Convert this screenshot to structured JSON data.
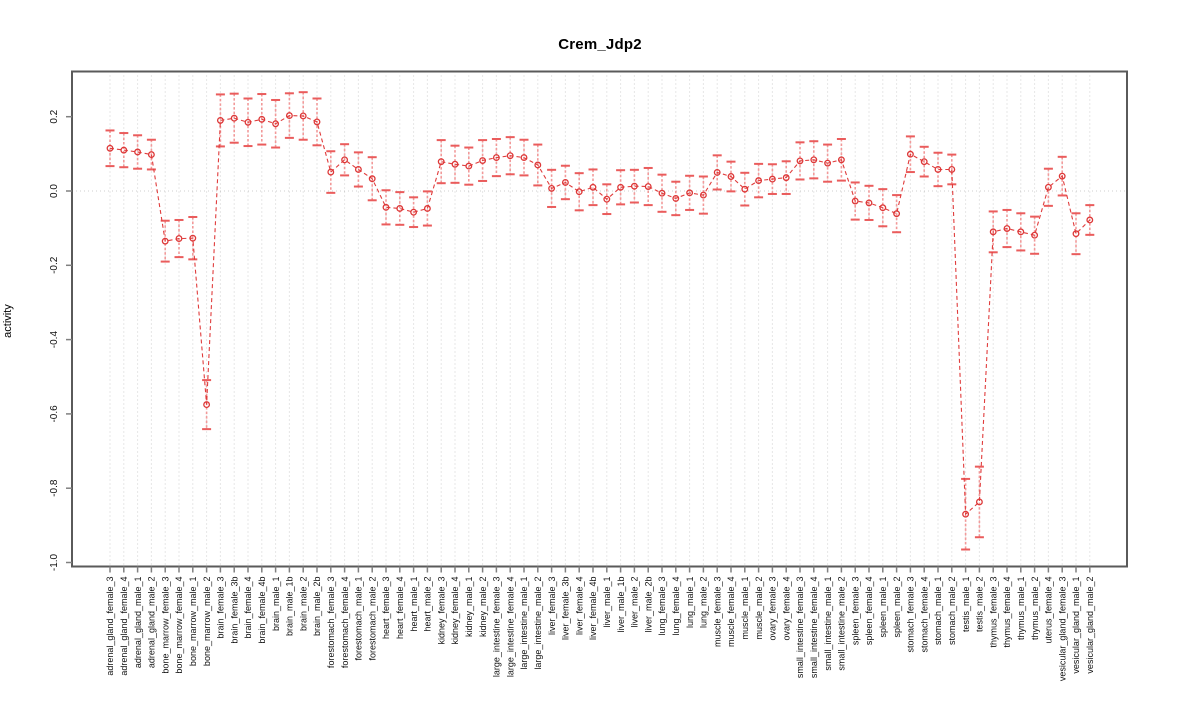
{
  "chart_data": {
    "type": "line",
    "title": "Crem_Jdp2",
    "xlabel": "",
    "ylabel": "activity",
    "ylim": [
      -1.0,
      0.28
    ],
    "yticks": [
      0.2,
      0.0,
      -0.2,
      -0.4,
      -0.6,
      -0.8,
      -1.0
    ],
    "ytick_labels": [
      "0.2",
      "0.0",
      "-0.2",
      "-0.4",
      "-0.6",
      "-0.8",
      "-1.0"
    ],
    "grid": "vertical-dotted-per-category-plus-dotted-zero-line",
    "legend": "none",
    "marker": "open-circle",
    "line_style": "dashed",
    "error_bars": true,
    "categories": [
      "adrenal_gland_female_3",
      "adrenal_gland_female_4",
      "adrenal_gland_male_1",
      "adrenal_gland_male_2",
      "bone_marrow_female_3",
      "bone_marrow_female_4",
      "bone_marrow_male_1",
      "bone_marrow_male_2",
      "brain_female_3",
      "brain_female_3b",
      "brain_female_4",
      "brain_female_4b",
      "brain_male_1",
      "brain_male_1b",
      "brain_male_2",
      "brain_male_2b",
      "forestomach_female_3",
      "forestomach_female_4",
      "forestomach_male_1",
      "forestomach_male_2",
      "heart_female_3",
      "heart_female_4",
      "heart_male_1",
      "heart_male_2",
      "kidney_female_3",
      "kidney_female_4",
      "kidney_male_1",
      "kidney_male_2",
      "large_intestine_female_3",
      "large_intestine_female_4",
      "large_intestine_male_1",
      "large_intestine_male_2",
      "liver_female_3",
      "liver_female_3b",
      "liver_female_4",
      "liver_female_4b",
      "liver_male_1",
      "liver_male_1b",
      "liver_male_2",
      "liver_male_2b",
      "lung_female_3",
      "lung_female_4",
      "lung_male_1",
      "lung_male_2",
      "muscle_female_3",
      "muscle_female_4",
      "muscle_male_1",
      "muscle_male_2",
      "ovary_female_3",
      "ovary_female_4",
      "small_intestine_female_3",
      "small_intestine_female_4",
      "small_intestine_male_1",
      "small_intestine_male_2",
      "spleen_female_3",
      "spleen_female_4",
      "spleen_male_1",
      "spleen_male_2",
      "stomach_female_3",
      "stomach_female_4",
      "stomach_male_1",
      "stomach_male_2",
      "testis_male_1",
      "testis_male_2",
      "thymus_female_3",
      "thymus_female_4",
      "thymus_male_1",
      "thymus_male_2",
      "uterus_female_4",
      "vesicular_gland_female_3",
      "vesicular_gland_male_1",
      "vesicular_gland_male_2"
    ],
    "series": [
      {
        "name": "activity",
        "values": [
          0.115,
          0.11,
          0.105,
          0.098,
          -0.135,
          -0.128,
          -0.127,
          -0.575,
          0.19,
          0.196,
          0.185,
          0.193,
          0.181,
          0.203,
          0.202,
          0.186,
          0.051,
          0.084,
          0.058,
          0.033,
          -0.044,
          -0.047,
          -0.057,
          -0.047,
          0.079,
          0.072,
          0.067,
          0.082,
          0.09,
          0.095,
          0.09,
          0.07,
          0.007,
          0.023,
          -0.002,
          0.01,
          -0.022,
          0.01,
          0.013,
          0.012,
          -0.006,
          -0.02,
          -0.005,
          -0.011,
          0.05,
          0.039,
          0.005,
          0.028,
          0.032,
          0.036,
          0.081,
          0.084,
          0.075,
          0.084,
          -0.027,
          -0.032,
          -0.045,
          -0.061,
          0.099,
          0.079,
          0.058,
          0.058,
          -0.87,
          -0.837,
          -0.11,
          -0.101,
          -0.11,
          -0.119,
          0.01,
          0.04,
          -0.115,
          -0.078
        ],
        "errors": [
          0.048,
          0.046,
          0.045,
          0.04,
          0.055,
          0.05,
          0.057,
          0.066,
          0.07,
          0.066,
          0.064,
          0.068,
          0.064,
          0.06,
          0.064,
          0.063,
          0.056,
          0.042,
          0.046,
          0.058,
          0.046,
          0.044,
          0.04,
          0.046,
          0.058,
          0.05,
          0.05,
          0.055,
          0.05,
          0.05,
          0.048,
          0.055,
          0.05,
          0.045,
          0.05,
          0.048,
          0.04,
          0.046,
          0.044,
          0.05,
          0.05,
          0.045,
          0.046,
          0.05,
          0.046,
          0.04,
          0.044,
          0.045,
          0.04,
          0.044,
          0.05,
          0.05,
          0.05,
          0.056,
          0.05,
          0.046,
          0.05,
          0.05,
          0.048,
          0.04,
          0.045,
          0.04,
          0.095,
          0.095,
          0.055,
          0.05,
          0.05,
          0.05,
          0.05,
          0.052,
          0.055,
          0.04
        ]
      }
    ],
    "colors": {
      "series": "#e03c3c",
      "marker": "#dd3838",
      "error_stem": "#f29090",
      "error_cap": "#ea5c5c",
      "grid": "#cfcfcf",
      "frame": "#5a5a5a",
      "tick": "#808080",
      "label_text": "#111111"
    }
  }
}
